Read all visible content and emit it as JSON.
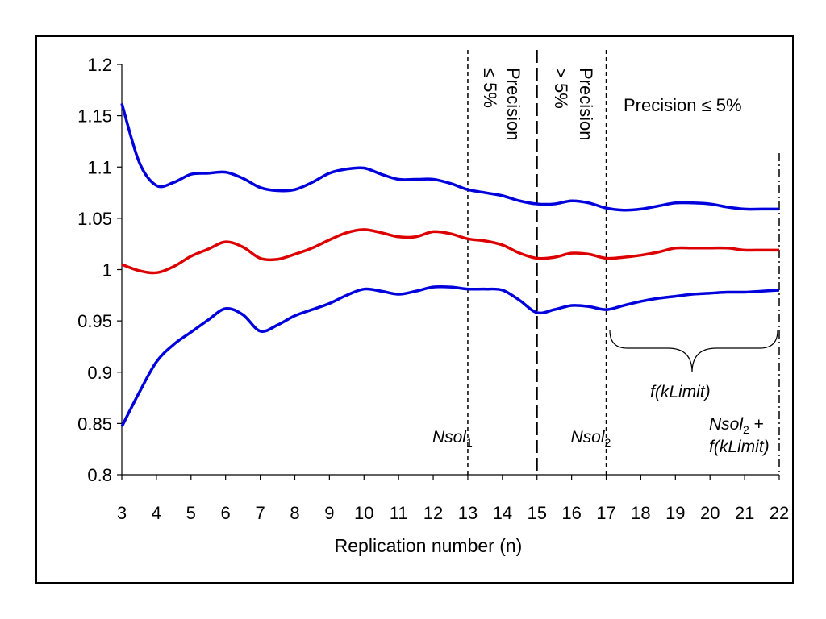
{
  "chart_data": {
    "type": "line",
    "title": "",
    "xlabel": "Replication number (n)",
    "ylabel": "",
    "xlim": [
      3,
      22
    ],
    "ylim": [
      0.8,
      1.2
    ],
    "grid": false,
    "x_ticks": [
      "3",
      "4",
      "5",
      "6",
      "7",
      "8",
      "9",
      "10",
      "11",
      "12",
      "13",
      "14",
      "15",
      "16",
      "17",
      "18",
      "19",
      "20",
      "21",
      "22"
    ],
    "y_ticks": [
      "0.8",
      "0.85",
      "0.9",
      "0.95",
      "1",
      "1.05",
      "1.1",
      "1.15",
      "1.2"
    ],
    "colors": {
      "upper": "#0000dd",
      "mean": "#dd0000",
      "lower": "#0000dd"
    },
    "series": [
      {
        "key": "upper",
        "x": [
          3,
          3.5,
          4,
          4.5,
          5,
          5.5,
          6,
          6.5,
          7,
          7.5,
          8,
          8.5,
          9,
          9.5,
          10,
          10.5,
          11,
          11.5,
          12,
          12.5,
          13,
          13.5,
          14,
          14.5,
          15,
          15.5,
          16,
          16.5,
          17,
          17.5,
          18,
          18.5,
          19,
          19.5,
          20,
          20.5,
          21,
          21.5,
          22
        ],
        "values": [
          1.162,
          1.105,
          1.082,
          1.085,
          1.093,
          1.094,
          1.095,
          1.089,
          1.08,
          1.077,
          1.078,
          1.085,
          1.094,
          1.098,
          1.099,
          1.093,
          1.088,
          1.088,
          1.088,
          1.084,
          1.078,
          1.075,
          1.072,
          1.067,
          1.064,
          1.064,
          1.067,
          1.065,
          1.06,
          1.058,
          1.059,
          1.062,
          1.065,
          1.065,
          1.064,
          1.061,
          1.059,
          1.059,
          1.059
        ]
      },
      {
        "key": "mean",
        "x": [
          3,
          3.5,
          4,
          4.5,
          5,
          5.5,
          6,
          6.5,
          7,
          7.5,
          8,
          8.5,
          9,
          9.5,
          10,
          10.5,
          11,
          11.5,
          12,
          12.5,
          13,
          13.5,
          14,
          14.5,
          15,
          15.5,
          16,
          16.5,
          17,
          17.5,
          18,
          18.5,
          19,
          19.5,
          20,
          20.5,
          21,
          21.5,
          22
        ],
        "values": [
          1.005,
          0.999,
          0.997,
          1.003,
          1.013,
          1.02,
          1.027,
          1.022,
          1.011,
          1.01,
          1.015,
          1.021,
          1.029,
          1.036,
          1.039,
          1.036,
          1.032,
          1.032,
          1.037,
          1.035,
          1.03,
          1.028,
          1.024,
          1.016,
          1.011,
          1.012,
          1.016,
          1.015,
          1.011,
          1.012,
          1.014,
          1.017,
          1.021,
          1.021,
          1.021,
          1.021,
          1.019,
          1.019,
          1.019
        ]
      },
      {
        "key": "lower",
        "x": [
          3,
          3.5,
          4,
          4.5,
          5,
          5.5,
          6,
          6.5,
          7,
          7.5,
          8,
          8.5,
          9,
          9.5,
          10,
          10.5,
          11,
          11.5,
          12,
          12.5,
          13,
          13.5,
          14,
          14.5,
          15,
          15.5,
          16,
          16.5,
          17,
          17.5,
          18,
          18.5,
          19,
          19.5,
          20,
          20.5,
          21,
          21.5,
          22
        ],
        "values": [
          0.847,
          0.88,
          0.91,
          0.927,
          0.939,
          0.951,
          0.962,
          0.956,
          0.94,
          0.946,
          0.955,
          0.961,
          0.967,
          0.975,
          0.981,
          0.979,
          0.976,
          0.979,
          0.983,
          0.983,
          0.981,
          0.981,
          0.98,
          0.97,
          0.958,
          0.961,
          0.965,
          0.964,
          0.961,
          0.965,
          0.969,
          0.972,
          0.974,
          0.976,
          0.977,
          0.978,
          0.978,
          0.979,
          0.98
        ]
      }
    ],
    "vlines": [
      {
        "x": 13,
        "style": "short-dash",
        "label": "Nsol",
        "sub": "1"
      },
      {
        "x": 15,
        "style": "long-dash"
      },
      {
        "x": 17,
        "style": "short-dash",
        "label": "Nsol",
        "sub": "2"
      },
      {
        "x": 22,
        "style": "dash-dot",
        "label": "Nsol",
        "sub": "2",
        "label_suffix": " +",
        "label_line2": "f(kLimit)"
      }
    ],
    "annotations": {
      "region1": [
        "Precision",
        "≤ 5%"
      ],
      "region2": [
        "Precision",
        "> 5%"
      ],
      "region3": "Precision ≤ 5%",
      "brace_label": "f(kLimit)"
    }
  }
}
